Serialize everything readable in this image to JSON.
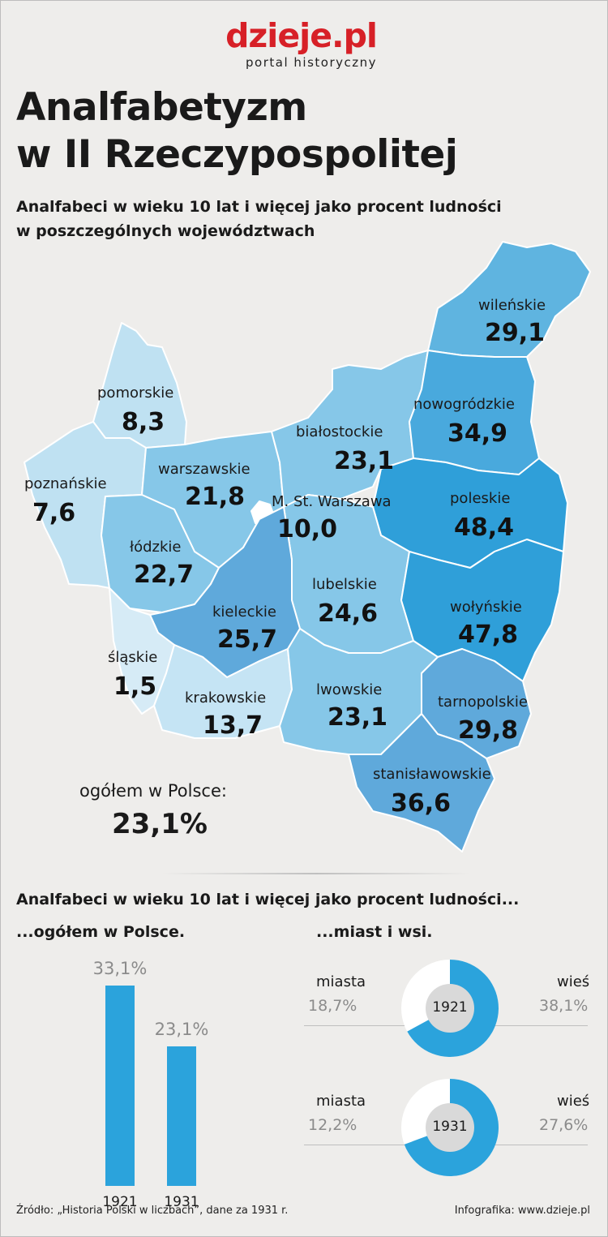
{
  "brand": {
    "name": "dzieje.pl",
    "subtitle": "portal historyczny"
  },
  "title_line1": "Analfabetyzm",
  "title_line2": "w II Rzeczypospolitej",
  "subtitle_line1": "Analfabeci w wieku 10 lat i więcej jako procent ludności",
  "subtitle_line2": "w poszczególnych województwach",
  "regions": [
    {
      "name": "wileńskie",
      "value": "29,1"
    },
    {
      "name": "nowogródzkie",
      "value": "34,9"
    },
    {
      "name": "białostockie",
      "value": "23,1"
    },
    {
      "name": "pomorskie",
      "value": "8,3"
    },
    {
      "name": "poznańskie",
      "value": "7,6"
    },
    {
      "name": "warszawskie",
      "value": "21,8"
    },
    {
      "name": "M. St. Warszawa",
      "value": "10,0"
    },
    {
      "name": "poleskie",
      "value": "48,4"
    },
    {
      "name": "łódzkie",
      "value": "22,7"
    },
    {
      "name": "lubelskie",
      "value": "24,6"
    },
    {
      "name": "kieleckie",
      "value": "25,7"
    },
    {
      "name": "wołyńskie",
      "value": "47,8"
    },
    {
      "name": "śląskie",
      "value": "1,5"
    },
    {
      "name": "krakowskie",
      "value": "13,7"
    },
    {
      "name": "lwowskie",
      "value": "23,1"
    },
    {
      "name": "tarnopolskie",
      "value": "29,8"
    },
    {
      "name": "stanisławowskie",
      "value": "36,6"
    }
  ],
  "total": {
    "label": "ogółem w Polsce:",
    "value": "23,1%"
  },
  "section": {
    "title": "Analfabeci w wieku 10 lat i więcej jako procent ludności...",
    "left_title": "...ogółem w Polsce.",
    "right_title": "...miast i wsi."
  },
  "chart_data": [
    {
      "type": "bar",
      "categories": [
        "1921",
        "1931"
      ],
      "values": [
        33.1,
        23.1
      ],
      "value_labels": [
        "33,1%",
        "23,1%"
      ],
      "ylim": [
        0,
        33.1
      ]
    },
    {
      "type": "pie",
      "center_label": "1921",
      "categories": [
        "miasta",
        "wieś"
      ],
      "values": [
        18.7,
        38.1
      ],
      "value_labels": [
        "18,7%",
        "38,1%"
      ]
    },
    {
      "type": "pie",
      "center_label": "1931",
      "categories": [
        "miasta",
        "wieś"
      ],
      "values": [
        12.2,
        27.6
      ],
      "value_labels": [
        "12,2%",
        "27,6%"
      ]
    }
  ],
  "colors": {
    "brand": "#d72027",
    "bar": "#2ba3dc",
    "donut_blue": "#2ba3dc",
    "donut_center": "#d9d9d9"
  },
  "footer": {
    "source": "Źródło: „Historia Polski w liczbach”, dane za 1931 r.",
    "credit": "Infografika: www.dzieje.pl"
  }
}
